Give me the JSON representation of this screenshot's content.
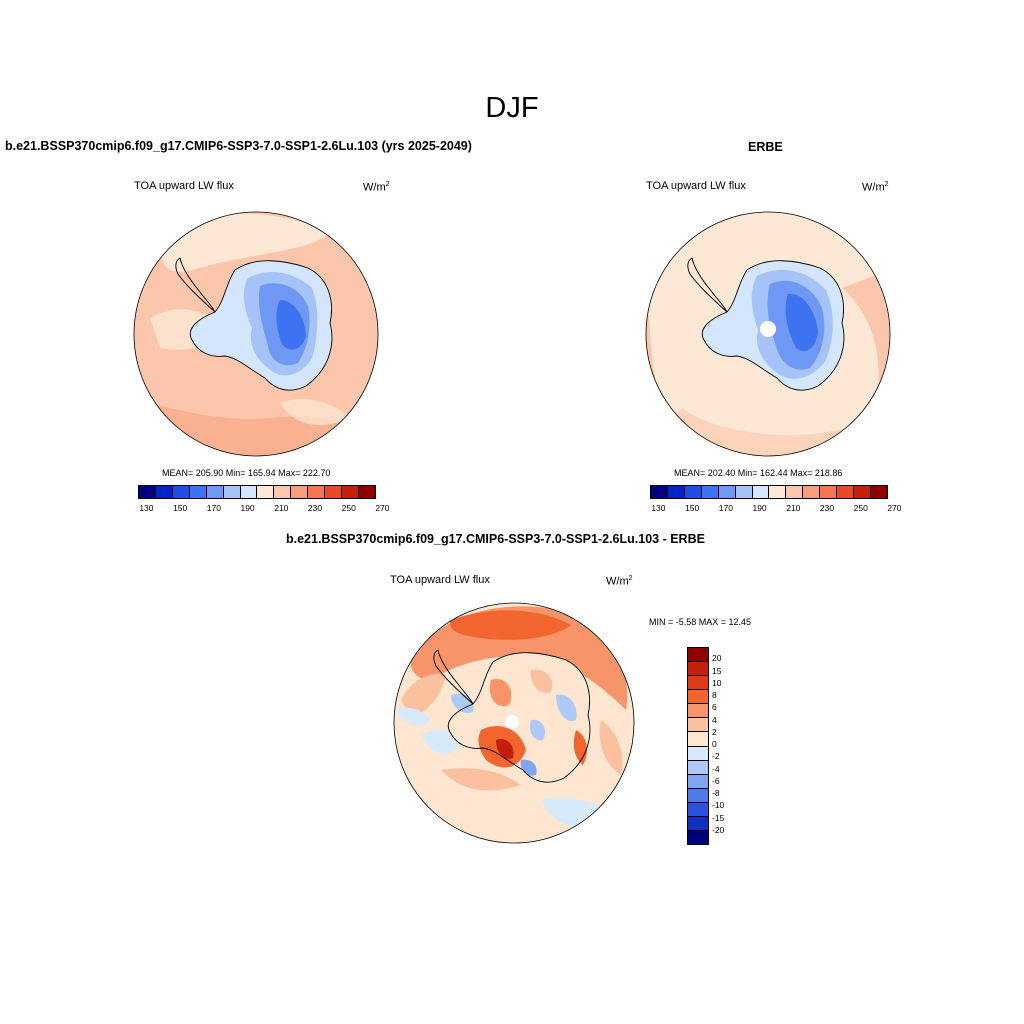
{
  "figure_title": "DJF",
  "units_base": "W/m",
  "units_exp": "2",
  "variable": "TOA upward LW flux",
  "palettes": {
    "abs": [
      "#00007f",
      "#0024c8",
      "#1b4fe6",
      "#3d72f0",
      "#6f98f5",
      "#a5c3f8",
      "#d3e6fb",
      "#fde8d5",
      "#fbc6ab",
      "#f8a07d",
      "#f47650",
      "#e84927",
      "#c51f0c",
      "#8e0000"
    ],
    "diff": [
      "#8e0000",
      "#c51f0c",
      "#e03a18",
      "#f2652f",
      "#f8946a",
      "#fbc09e",
      "#fee6d0",
      "#d6eafb",
      "#aec9f6",
      "#7fa6f2",
      "#4f7aea",
      "#2a52de",
      "#0f2fbf",
      "#00007f"
    ]
  },
  "panels": {
    "model": {
      "title": "b.e21.BSSP370cmip6.f09_g17.CMIP6-SSP3-7.0-SSP1-2.6Lu.103 (yrs 2025-2049)",
      "stats": "MEAN= 205.90   Min= 165.94   Max= 222.70",
      "ticks": [
        "130",
        "150",
        "170",
        "190",
        "210",
        "230",
        "250",
        "270"
      ]
    },
    "obs": {
      "title": "ERBE",
      "stats": "MEAN= 202.40   Min= 162.44   Max= 218.86",
      "ticks": [
        "130",
        "150",
        "170",
        "190",
        "210",
        "230",
        "250",
        "270"
      ]
    },
    "diff": {
      "title": "b.e21.BSSP370cmip6.f09_g17.CMIP6-SSP3-7.0-SSP1-2.6Lu.103 - ERBE",
      "stats": "MIN =  -5.58 MAX =  12.45",
      "ticks": [
        "20",
        "15",
        "10",
        "8",
        "6",
        "4",
        "2",
        "0",
        "-2",
        "-4",
        "-6",
        "-8",
        "-10",
        "-15",
        "-20"
      ]
    }
  }
}
